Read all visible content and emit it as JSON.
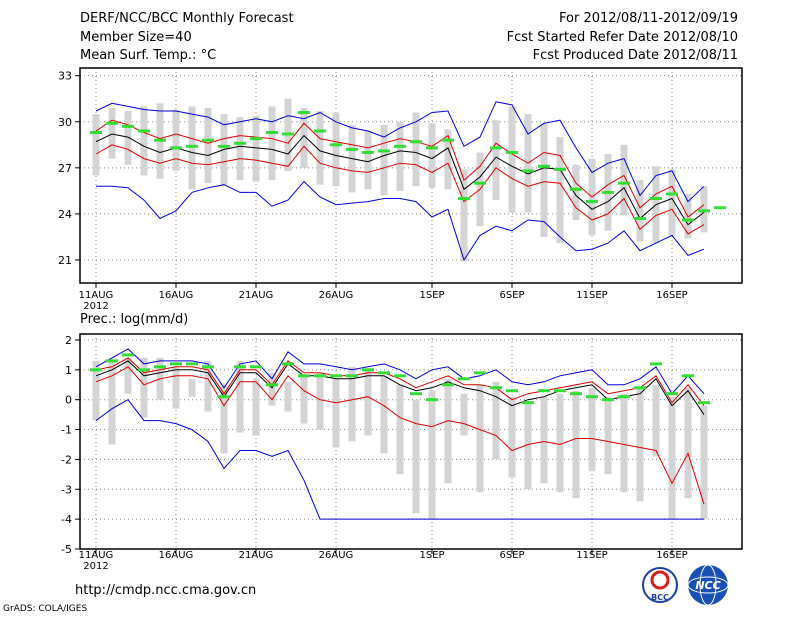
{
  "header": {
    "title": "DERF/NCC/BCC Monthly Forecast",
    "member_size": "Member Size=40",
    "variable": "Mean Surf. Temp.: °C",
    "period": "For 2012/08/11-2012/09/19",
    "refer_date": "Fcst Started Refer Date 2012/08/10",
    "produced_date": "Fcst Produced Date 2012/08/11"
  },
  "footer": {
    "url": "http://cmdp.ncc.cma.gov.cn",
    "grads": "GrADS: COLA/IGES",
    "logo_bcc_text": "BCC",
    "logo_ncc_text": "NCC"
  },
  "colors": {
    "envelope": "#0000dd",
    "spread": "#dd0000",
    "mean": "#000000",
    "observed": "#33dd33",
    "box": "#d4d4d4",
    "grid": "#888888"
  },
  "chart_data": [
    {
      "type": "line",
      "title": "Mean Surf. Temp.: °C",
      "x_tick_labels": [
        "11AUG",
        "16AUG",
        "21AUG",
        "26AUG",
        "1SEP",
        "6SEP",
        "11SEP",
        "16SEP"
      ],
      "x_tick_days": [
        0,
        5,
        10,
        15,
        21,
        26,
        31,
        36
      ],
      "year_label": "2012",
      "ylim": [
        19.5,
        33.5
      ],
      "yticks": [
        21,
        24,
        27,
        30,
        33
      ],
      "ytick_labels": [
        "21",
        "24",
        "27",
        "30",
        "33"
      ],
      "series": [
        {
          "name": "max",
          "color": "#0000dd",
          "values": [
            30.7,
            31.2,
            31.0,
            30.8,
            30.7,
            30.7,
            30.5,
            30.3,
            29.8,
            30.0,
            30.2,
            30.0,
            30.4,
            30.2,
            30.6,
            30.0,
            29.6,
            29.4,
            29.0,
            29.6,
            30.0,
            30.6,
            30.7,
            28.4,
            29.0,
            31.3,
            31.1,
            29.2,
            29.9,
            30.1,
            28.3,
            26.7,
            27.3,
            27.6,
            25.2,
            26.5,
            26.8,
            24.8,
            25.8,
            null
          ]
        },
        {
          "name": "upper",
          "color": "#dd0000",
          "values": [
            29.4,
            30.1,
            29.8,
            29.3,
            28.9,
            29.2,
            28.9,
            28.6,
            28.9,
            29.1,
            29.0,
            28.9,
            28.6,
            29.9,
            28.9,
            28.7,
            28.5,
            28.3,
            28.6,
            28.9,
            28.7,
            28.4,
            29.1,
            26.2,
            27.1,
            28.6,
            27.9,
            27.3,
            28.0,
            27.8,
            26.0,
            25.1,
            25.9,
            26.5,
            24.4,
            25.3,
            25.8,
            23.8,
            24.6,
            null
          ]
        },
        {
          "name": "mean",
          "color": "#000000",
          "values": [
            28.7,
            29.2,
            29.0,
            28.4,
            28.0,
            28.3,
            28.0,
            27.8,
            28.2,
            28.4,
            28.3,
            28.2,
            27.9,
            29.1,
            28.1,
            27.8,
            27.6,
            27.4,
            27.8,
            28.1,
            28.0,
            27.6,
            28.3,
            25.6,
            26.4,
            27.7,
            27.1,
            26.6,
            27.0,
            26.9,
            25.2,
            24.3,
            24.8,
            25.7,
            23.7,
            24.6,
            25.0,
            23.3,
            24.1,
            null
          ]
        },
        {
          "name": "lower",
          "color": "#dd0000",
          "values": [
            27.9,
            28.5,
            28.2,
            27.6,
            27.3,
            27.6,
            27.3,
            27.2,
            27.4,
            27.6,
            27.5,
            27.3,
            27.1,
            28.4,
            27.3,
            27.0,
            26.8,
            26.7,
            27.0,
            27.3,
            27.2,
            26.7,
            27.3,
            24.8,
            25.6,
            27.0,
            26.3,
            25.8,
            26.1,
            26.0,
            24.4,
            23.6,
            24.0,
            25.0,
            23.0,
            23.9,
            24.3,
            22.7,
            23.3,
            null
          ]
        },
        {
          "name": "min",
          "color": "#0000dd",
          "values": [
            25.8,
            25.8,
            25.7,
            24.9,
            23.7,
            24.2,
            25.4,
            25.7,
            25.9,
            25.4,
            25.4,
            24.5,
            24.9,
            26.1,
            25.1,
            24.6,
            24.7,
            24.8,
            25.0,
            25.0,
            24.8,
            23.8,
            24.3,
            21.0,
            22.6,
            23.2,
            22.9,
            23.6,
            23.5,
            22.5,
            21.6,
            21.7,
            22.1,
            22.9,
            21.6,
            22.1,
            22.6,
            21.3,
            21.7,
            null
          ]
        },
        {
          "name": "observed",
          "color": "#33dd33",
          "values": [
            29.3,
            29.9,
            29.7,
            29.4,
            28.8,
            28.3,
            28.4,
            28.8,
            28.4,
            28.6,
            28.9,
            29.3,
            29.2,
            30.6,
            29.4,
            28.5,
            28.2,
            28.0,
            28.1,
            28.4,
            28.7,
            28.3,
            28.8,
            25.0,
            26.0,
            28.3,
            28.0,
            26.8,
            27.1,
            26.9,
            25.6,
            24.8,
            25.4,
            26.0,
            23.7,
            25.0,
            25.3,
            23.6,
            24.2,
            24.4
          ]
        },
        {
          "name": "box_top",
          "color": "#d4d4d4",
          "values": [
            30.5,
            30.9,
            30.7,
            31.0,
            31.2,
            30.8,
            31.0,
            30.9,
            30.5,
            30.3,
            30.4,
            31.0,
            31.5,
            30.9,
            30.7,
            30.6,
            29.8,
            29.4,
            29.8,
            30.0,
            30.6,
            29.9,
            29.5,
            26.9,
            28.0,
            30.1,
            31.0,
            30.5,
            29.9,
            29.0,
            27.2,
            27.6,
            27.9,
            28.5,
            26.2,
            27.1,
            26.9,
            25.3,
            25.8,
            null
          ]
        },
        {
          "name": "box_bottom",
          "color": "#d4d4d4",
          "values": [
            26.5,
            27.6,
            27.2,
            26.5,
            26.3,
            26.8,
            25.6,
            26.0,
            25.9,
            26.2,
            26.1,
            26.2,
            26.8,
            27.0,
            25.9,
            25.8,
            25.4,
            25.6,
            25.2,
            25.5,
            25.8,
            25.7,
            25.6,
            20.9,
            23.2,
            24.9,
            24.1,
            24.1,
            22.5,
            22.1,
            23.6,
            22.6,
            22.9,
            23.9,
            22.2,
            22.1,
            22.6,
            22.4,
            22.8,
            null
          ]
        }
      ]
    },
    {
      "type": "line",
      "title": "Prec.: log(mm/d)",
      "x_tick_labels": [
        "11AUG",
        "16AUG",
        "21AUG",
        "26AUG",
        "1SEP",
        "6SEP",
        "11SEP",
        "16SEP"
      ],
      "x_tick_days": [
        0,
        5,
        10,
        15,
        21,
        26,
        31,
        36
      ],
      "year_label": "2012",
      "ylim": [
        -5,
        2.2
      ],
      "yticks": [
        -5,
        -4,
        -3,
        -2,
        -1,
        0,
        1,
        2
      ],
      "ytick_labels": [
        "-5",
        "-4",
        "-3",
        "-2",
        "-1",
        "0",
        "1",
        "2"
      ],
      "series": [
        {
          "name": "max",
          "color": "#0000dd",
          "values": [
            1.1,
            1.4,
            1.7,
            1.2,
            1.3,
            1.3,
            1.3,
            1.2,
            0.4,
            1.2,
            1.3,
            0.7,
            1.6,
            1.2,
            1.2,
            1.1,
            1.0,
            1.1,
            1.2,
            1.0,
            0.7,
            1.0,
            1.1,
            0.7,
            0.8,
            1.0,
            0.6,
            0.5,
            0.6,
            0.8,
            0.9,
            1.0,
            0.5,
            0.5,
            0.7,
            1.1,
            0.2,
            0.8,
            0.2,
            null
          ]
        },
        {
          "name": "upper",
          "color": "#dd0000",
          "values": [
            1.0,
            1.1,
            1.4,
            0.9,
            1.0,
            1.1,
            1.1,
            1.0,
            0.2,
            1.0,
            1.0,
            0.5,
            1.3,
            0.9,
            0.9,
            0.8,
            0.8,
            0.9,
            0.9,
            0.7,
            0.4,
            0.6,
            0.8,
            0.5,
            0.5,
            0.4,
            0.0,
            0.2,
            0.3,
            0.4,
            0.5,
            0.6,
            0.2,
            0.3,
            0.4,
            0.8,
            -0.1,
            0.5,
            -0.2,
            null
          ]
        },
        {
          "name": "mean",
          "color": "#000000",
          "values": [
            0.8,
            1.0,
            1.3,
            0.8,
            0.9,
            1.0,
            1.0,
            0.9,
            0.1,
            0.9,
            0.9,
            0.4,
            1.2,
            0.8,
            0.8,
            0.7,
            0.7,
            0.8,
            0.8,
            0.5,
            0.3,
            0.4,
            0.6,
            0.4,
            0.3,
            0.1,
            -0.2,
            0.0,
            0.1,
            0.3,
            0.4,
            0.5,
            0.0,
            0.1,
            0.2,
            0.7,
            -0.2,
            0.3,
            -0.5,
            null
          ]
        },
        {
          "name": "lower",
          "color": "#dd0000",
          "values": [
            0.6,
            0.8,
            1.1,
            0.5,
            0.7,
            0.8,
            0.8,
            0.7,
            -0.2,
            0.6,
            0.6,
            0.0,
            0.8,
            0.3,
            0.0,
            -0.1,
            0.0,
            0.1,
            -0.2,
            -0.6,
            -0.8,
            -0.9,
            -0.7,
            -0.8,
            -1.0,
            -1.2,
            -1.7,
            -1.5,
            -1.4,
            -1.5,
            -1.3,
            -1.3,
            -1.4,
            -1.5,
            -1.6,
            -1.7,
            -2.8,
            -1.8,
            -3.5,
            null
          ]
        },
        {
          "name": "min",
          "color": "#0000dd",
          "values": [
            -0.7,
            -0.3,
            0.0,
            -0.7,
            -0.7,
            -0.8,
            -1.0,
            -1.4,
            -2.3,
            -1.7,
            -1.7,
            -1.9,
            -1.7,
            -2.7,
            -4.0,
            -4.0,
            -4.0,
            -4.0,
            -4.0,
            -4.0,
            -4.0,
            -4.0,
            -4.0,
            -4.0,
            -4.0,
            -4.0,
            -4.0,
            -4.0,
            -4.0,
            -4.0,
            -4.0,
            -4.0,
            -4.0,
            -4.0,
            -4.0,
            -4.0,
            -4.0,
            -4.0,
            -4.0,
            null
          ]
        },
        {
          "name": "observed",
          "color": "#33dd33",
          "values": [
            1.0,
            1.3,
            1.5,
            1.0,
            1.1,
            1.2,
            1.2,
            1.1,
            0.1,
            1.1,
            1.1,
            0.5,
            1.2,
            0.8,
            0.8,
            0.8,
            0.8,
            1.0,
            0.9,
            0.8,
            0.2,
            0.0,
            0.5,
            0.7,
            0.9,
            0.4,
            0.3,
            -0.1,
            0.3,
            0.3,
            0.2,
            0.1,
            0.0,
            0.1,
            0.4,
            1.2,
            0.2,
            0.8,
            -0.1,
            null
          ]
        },
        {
          "name": "box_top",
          "color": "#d4d4d4",
          "values": [
            1.3,
            1.3,
            1.4,
            1.4,
            1.4,
            1.1,
            0.7,
            1.3,
            0.5,
            1.3,
            0.7,
            0.9,
            0.6,
            0.8,
            0.9,
            0.7,
            1.1,
            1.0,
            0.8,
            0.5,
            0.0,
            0.3,
            0.7,
            0.2,
            0.5,
            0.6,
            0.1,
            -0.1,
            0.1,
            0.2,
            0.3,
            0.4,
            0.1,
            0.2,
            0.4,
            0.5,
            0.1,
            0.4,
            -0.2,
            null
          ]
        },
        {
          "name": "box_bottom",
          "color": "#d4d4d4",
          "values": [
            -0.7,
            -1.5,
            0.2,
            -0.6,
            0.0,
            -0.3,
            0.1,
            -0.4,
            -1.8,
            -1.1,
            -1.2,
            -0.2,
            -0.4,
            -0.8,
            -1.0,
            -1.6,
            -1.4,
            -1.2,
            -1.8,
            -2.5,
            -3.8,
            -4.0,
            -2.8,
            -1.2,
            -3.1,
            -2.0,
            -2.6,
            -3.0,
            -2.8,
            -3.1,
            -3.3,
            -2.4,
            -2.5,
            -3.1,
            -3.4,
            -1.9,
            -4.0,
            -3.3,
            -4.0,
            null
          ]
        }
      ]
    }
  ]
}
